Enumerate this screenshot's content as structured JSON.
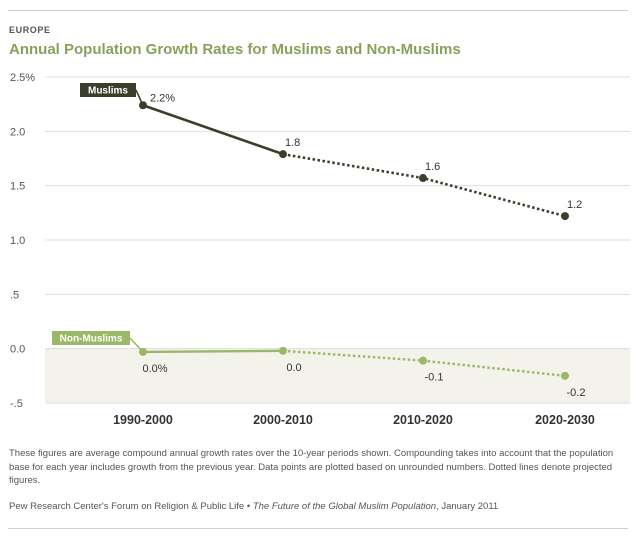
{
  "header": {
    "region": "EUROPE",
    "title": "Annual Population Growth Rates for Muslims and Non-Muslims"
  },
  "chart_data": {
    "type": "line",
    "title": "Annual Population Growth Rates for Muslims and Non-Muslims",
    "subtitle": "EUROPE",
    "categories": [
      "1990-2000",
      "2000-2010",
      "2010-2020",
      "2020-2030"
    ],
    "ylim": [
      -0.5,
      2.5
    ],
    "yticks": [
      -0.5,
      0.0,
      0.5,
      1.0,
      1.5,
      2.0,
      2.5
    ],
    "ytick_labels": [
      "-.5",
      "0.0",
      ".5",
      "1.0",
      "1.5",
      "2.0",
      "2.5%"
    ],
    "xlabel": "",
    "ylabel": "",
    "grid": true,
    "projected_from_index": 1,
    "series": [
      {
        "name": "Muslims",
        "values": [
          2.24,
          1.79,
          1.57,
          1.22
        ],
        "labels": [
          "2.2%",
          "1.8",
          "1.6",
          "1.2"
        ],
        "color": "#3b3f2a"
      },
      {
        "name": "Non-Muslims",
        "values": [
          -0.03,
          -0.02,
          -0.11,
          -0.25
        ],
        "labels": [
          "0.0%",
          "0.0",
          "-0.1",
          "-0.2"
        ],
        "color": "#9bb866"
      }
    ],
    "colors": {
      "negative_band": "#f3f3ec",
      "grid": "#dddddd"
    }
  },
  "notes": {
    "text": "These figures are average compound annual growth rates over the 10-year periods shown. Compounding takes into account that the population base for each year includes growth from the previous year. Data points are plotted based on unrounded numbers. Dotted lines denote projected figures."
  },
  "source": {
    "prefix": "Pew Research Center's Forum on Religion & Public Life • ",
    "publication": "The Future of the Global Muslim Population",
    "suffix": ", January 2011"
  }
}
